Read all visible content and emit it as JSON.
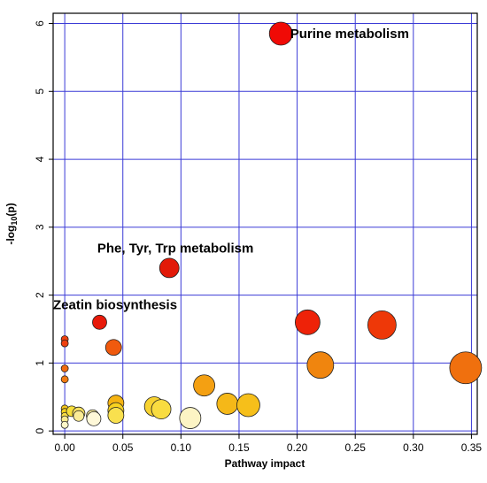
{
  "chart_data": {
    "type": "scatter",
    "title": "",
    "xlabel": "Pathway impact",
    "ylabel_main": "-log",
    "ylabel_sub": "10",
    "ylabel_tail": "(p)",
    "xlim": [
      -0.01,
      0.355
    ],
    "ylim": [
      -0.05,
      6.15
    ],
    "x_ticks": [
      0.0,
      0.05,
      0.1,
      0.15,
      0.2,
      0.25,
      0.3,
      0.35
    ],
    "x_tick_labels": [
      "0.00",
      "0.05",
      "0.10",
      "0.15",
      "0.20",
      "0.25",
      "0.30",
      "0.35"
    ],
    "y_ticks": [
      0,
      1,
      2,
      3,
      4,
      5,
      6
    ],
    "y_tick_labels": [
      "0",
      "1",
      "2",
      "3",
      "4",
      "5",
      "6"
    ],
    "grid": true,
    "grid_color": "#3a3ad6",
    "points": [
      {
        "x": 0.0,
        "y": 1.35,
        "r": 4,
        "color": "#ee4010"
      },
      {
        "x": 0.0,
        "y": 1.29,
        "r": 4,
        "color": "#ee4010"
      },
      {
        "x": 0.0,
        "y": 0.92,
        "r": 4,
        "color": "#f06a0e"
      },
      {
        "x": 0.0,
        "y": 0.76,
        "r": 4,
        "color": "#f07a12"
      },
      {
        "x": 0.0,
        "y": 0.33,
        "r": 4,
        "color": "#f4c51a"
      },
      {
        "x": 0.0,
        "y": 0.28,
        "r": 4,
        "color": "#f6d21e"
      },
      {
        "x": 0.0,
        "y": 0.22,
        "r": 4,
        "color": "#f8dd45"
      },
      {
        "x": 0.0,
        "y": 0.17,
        "r": 4,
        "color": "#fae98e"
      },
      {
        "x": 0.0,
        "y": 0.09,
        "r": 4,
        "color": "#fdf6c8"
      },
      {
        "x": 0.006,
        "y": 0.29,
        "r": 6,
        "color": "#f8df3a"
      },
      {
        "x": 0.012,
        "y": 0.26,
        "r": 7,
        "color": "#f8e060"
      },
      {
        "x": 0.012,
        "y": 0.22,
        "r": 6,
        "color": "#fbec96"
      },
      {
        "x": 0.024,
        "y": 0.22,
        "r": 7,
        "color": "#fcef9e"
      },
      {
        "x": 0.025,
        "y": 0.18,
        "r": 8,
        "color": "#fef8d8"
      },
      {
        "x": 0.03,
        "y": 1.6,
        "r": 8,
        "color": "#e81a0a"
      },
      {
        "x": 0.042,
        "y": 1.23,
        "r": 9,
        "color": "#f05a0e"
      },
      {
        "x": 0.044,
        "y": 0.41,
        "r": 9,
        "color": "#f5b312"
      },
      {
        "x": 0.044,
        "y": 0.3,
        "r": 9,
        "color": "#f8d220"
      },
      {
        "x": 0.044,
        "y": 0.23,
        "r": 9,
        "color": "#f9e04e"
      },
      {
        "x": 0.077,
        "y": 0.36,
        "r": 11,
        "color": "#f7d230"
      },
      {
        "x": 0.083,
        "y": 0.32,
        "r": 11,
        "color": "#f9dc40"
      },
      {
        "x": 0.09,
        "y": 2.4,
        "r": 11,
        "color": "#e21a08"
      },
      {
        "x": 0.108,
        "y": 0.19,
        "r": 12,
        "color": "#fcf4c4"
      },
      {
        "x": 0.12,
        "y": 0.67,
        "r": 12,
        "color": "#f4a012"
      },
      {
        "x": 0.14,
        "y": 0.4,
        "r": 12,
        "color": "#f5b818"
      },
      {
        "x": 0.158,
        "y": 0.38,
        "r": 13,
        "color": "#f6bf1a"
      },
      {
        "x": 0.186,
        "y": 5.85,
        "r": 13,
        "color": "#f00a06"
      },
      {
        "x": 0.209,
        "y": 1.6,
        "r": 14,
        "color": "#ee2208"
      },
      {
        "x": 0.22,
        "y": 0.97,
        "r": 15,
        "color": "#f0850e"
      },
      {
        "x": 0.273,
        "y": 1.56,
        "r": 16,
        "color": "#ee3808"
      },
      {
        "x": 0.345,
        "y": 0.93,
        "r": 18,
        "color": "#f0700e"
      }
    ],
    "annotations": [
      {
        "text": "Purine metabolism",
        "x": 0.194,
        "y": 5.85,
        "anchor": "start"
      },
      {
        "text": "Phe, Tyr, Trp metabolism",
        "x": 0.028,
        "y": 2.69,
        "anchor": "start"
      },
      {
        "text": "Zeatin biosynthesis",
        "x": -0.01,
        "y": 1.86,
        "anchor": "start"
      }
    ]
  }
}
